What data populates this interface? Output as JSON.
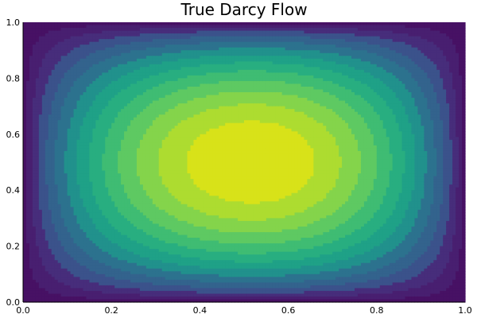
{
  "chart_data": {
    "type": "heatmap",
    "subtype": "filled-contour",
    "title": "True Darcy Flow",
    "xlabel": "",
    "ylabel": "",
    "xlim": [
      0.0,
      1.0
    ],
    "ylim": [
      0.0,
      1.0
    ],
    "x_ticks": [
      "0.0",
      "0.2",
      "0.4",
      "0.6",
      "0.8",
      "1.0"
    ],
    "y_ticks": [
      "0.0",
      "0.2",
      "0.4",
      "0.6",
      "0.8",
      "1.0"
    ],
    "x_tick_values": [
      0.0,
      0.2,
      0.4,
      0.6,
      0.8,
      1.0
    ],
    "y_tick_values": [
      0.0,
      0.2,
      0.4,
      0.6,
      0.8,
      1.0
    ],
    "grid": false,
    "colorbar": false,
    "colormap": "viridis",
    "peak_location": [
      0.52,
      0.5
    ],
    "field_values_at_y_0_5": {
      "x": [
        0.0,
        0.05,
        0.1,
        0.15,
        0.2,
        0.25,
        0.3,
        0.35,
        0.4,
        0.45,
        0.5,
        0.55,
        0.6,
        0.65,
        0.7,
        0.75,
        0.8,
        0.85,
        0.9,
        0.95,
        1.0
      ],
      "u": [
        0.0,
        0.3,
        0.47,
        0.58,
        0.67,
        0.74,
        0.8,
        0.86,
        0.92,
        0.97,
        1.0,
        0.99,
        0.95,
        0.89,
        0.82,
        0.74,
        0.65,
        0.55,
        0.43,
        0.27,
        0.0
      ]
    },
    "contour_levels": [
      0.0,
      0.071,
      0.143,
      0.214,
      0.286,
      0.357,
      0.429,
      0.5,
      0.571,
      0.643,
      0.714,
      0.786,
      0.857,
      0.929,
      1.0
    ],
    "level_colors": [
      "#440154",
      "#471164",
      "#481f70",
      "#472d7b",
      "#3b528b",
      "#33638d",
      "#2c728e",
      "#21918c",
      "#1fa187",
      "#28ae80",
      "#3fbc73",
      "#5ec962",
      "#84d44b",
      "#addc30",
      "#d8e219",
      "#fde725"
    ]
  }
}
